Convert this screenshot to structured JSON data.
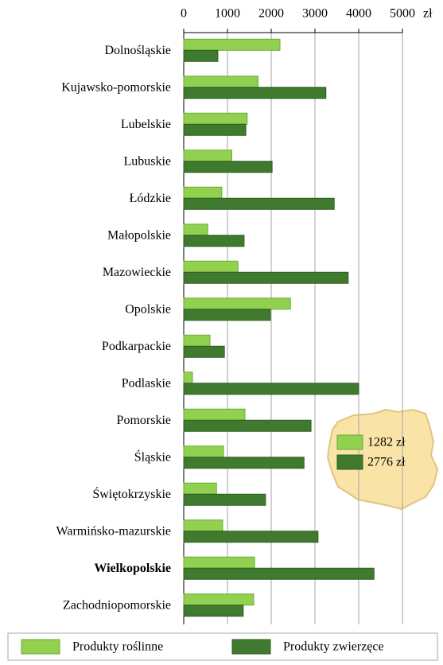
{
  "chart_data": {
    "type": "hbar",
    "categories": [
      "Dolnośląskie",
      "Kujawsko-pomorskie",
      "Lubelskie",
      "Lubuskie",
      "Łódzkie",
      "Małopolskie",
      "Mazowieckie",
      "Opolskie",
      "Podkarpackie",
      "Podlaskie",
      "Pomorskie",
      "Śląskie",
      "Świętokrzyskie",
      "Warmińsko-mazurskie",
      "Wielkopolskie",
      "Zachodniopomorskie"
    ],
    "highlight": "Wielkopolskie",
    "series": [
      {
        "name": "Produkty roślinne",
        "color": "#92d050",
        "values": [
          2200,
          1700,
          1450,
          1100,
          870,
          550,
          1240,
          2440,
          600,
          200,
          1400,
          910,
          750,
          890,
          1620,
          1600
        ]
      },
      {
        "name": "Produkty zwierzęce",
        "color": "#3f7a2e",
        "values": [
          780,
          3250,
          1420,
          2020,
          3440,
          1380,
          3760,
          1980,
          930,
          4000,
          2910,
          2750,
          1870,
          3070,
          4350,
          1360
        ]
      }
    ],
    "xlim": [
      0,
      5000
    ],
    "xticks": [
      0,
      1000,
      2000,
      3000,
      4000,
      5000
    ],
    "x_unit": "zł",
    "grid": true,
    "map_labels": [
      "1282 zł",
      "2776 zł"
    ]
  }
}
